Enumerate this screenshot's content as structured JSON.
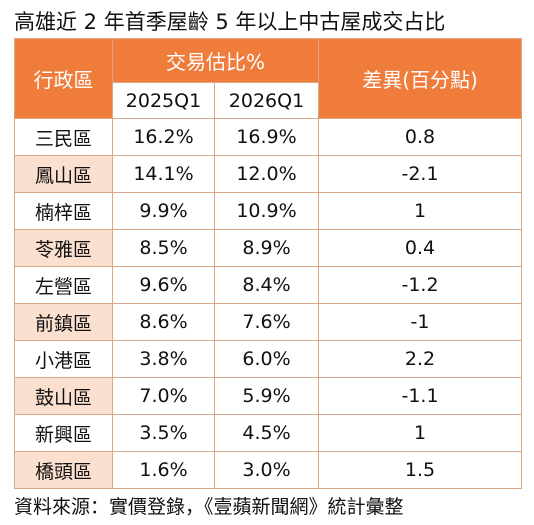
{
  "title": "高雄近 2 年首季屋齡 5 年以上中古屋成交占比",
  "table": {
    "header": {
      "district": "行政區",
      "group": "交易估比%",
      "periods": [
        "2025Q1",
        "2026Q1"
      ],
      "diff": "差異(百分點)"
    },
    "rows": [
      [
        "三民區",
        "16.2%",
        "16.9%",
        "0.8"
      ],
      [
        "鳳山區",
        "14.1%",
        "12.0%",
        "-2.1"
      ],
      [
        "楠梓區",
        "9.9%",
        "10.9%",
        "1"
      ],
      [
        "苓雅區",
        "8.5%",
        "8.9%",
        "0.4"
      ],
      [
        "左營區",
        "9.6%",
        "8.4%",
        "-1.2"
      ],
      [
        "前鎮區",
        "8.6%",
        "7.6%",
        "-1"
      ],
      [
        "小港區",
        "3.8%",
        "6.0%",
        "2.2"
      ],
      [
        "鼓山區",
        "7.0%",
        "5.9%",
        "-1.1"
      ],
      [
        "新興區",
        "3.5%",
        "4.5%",
        "1"
      ],
      [
        "橋頭區",
        "1.6%",
        "3.0%",
        "1.5"
      ]
    ]
  },
  "source": "資料來源：實價登錄，《壹蘋新聞網》統計彙整"
}
